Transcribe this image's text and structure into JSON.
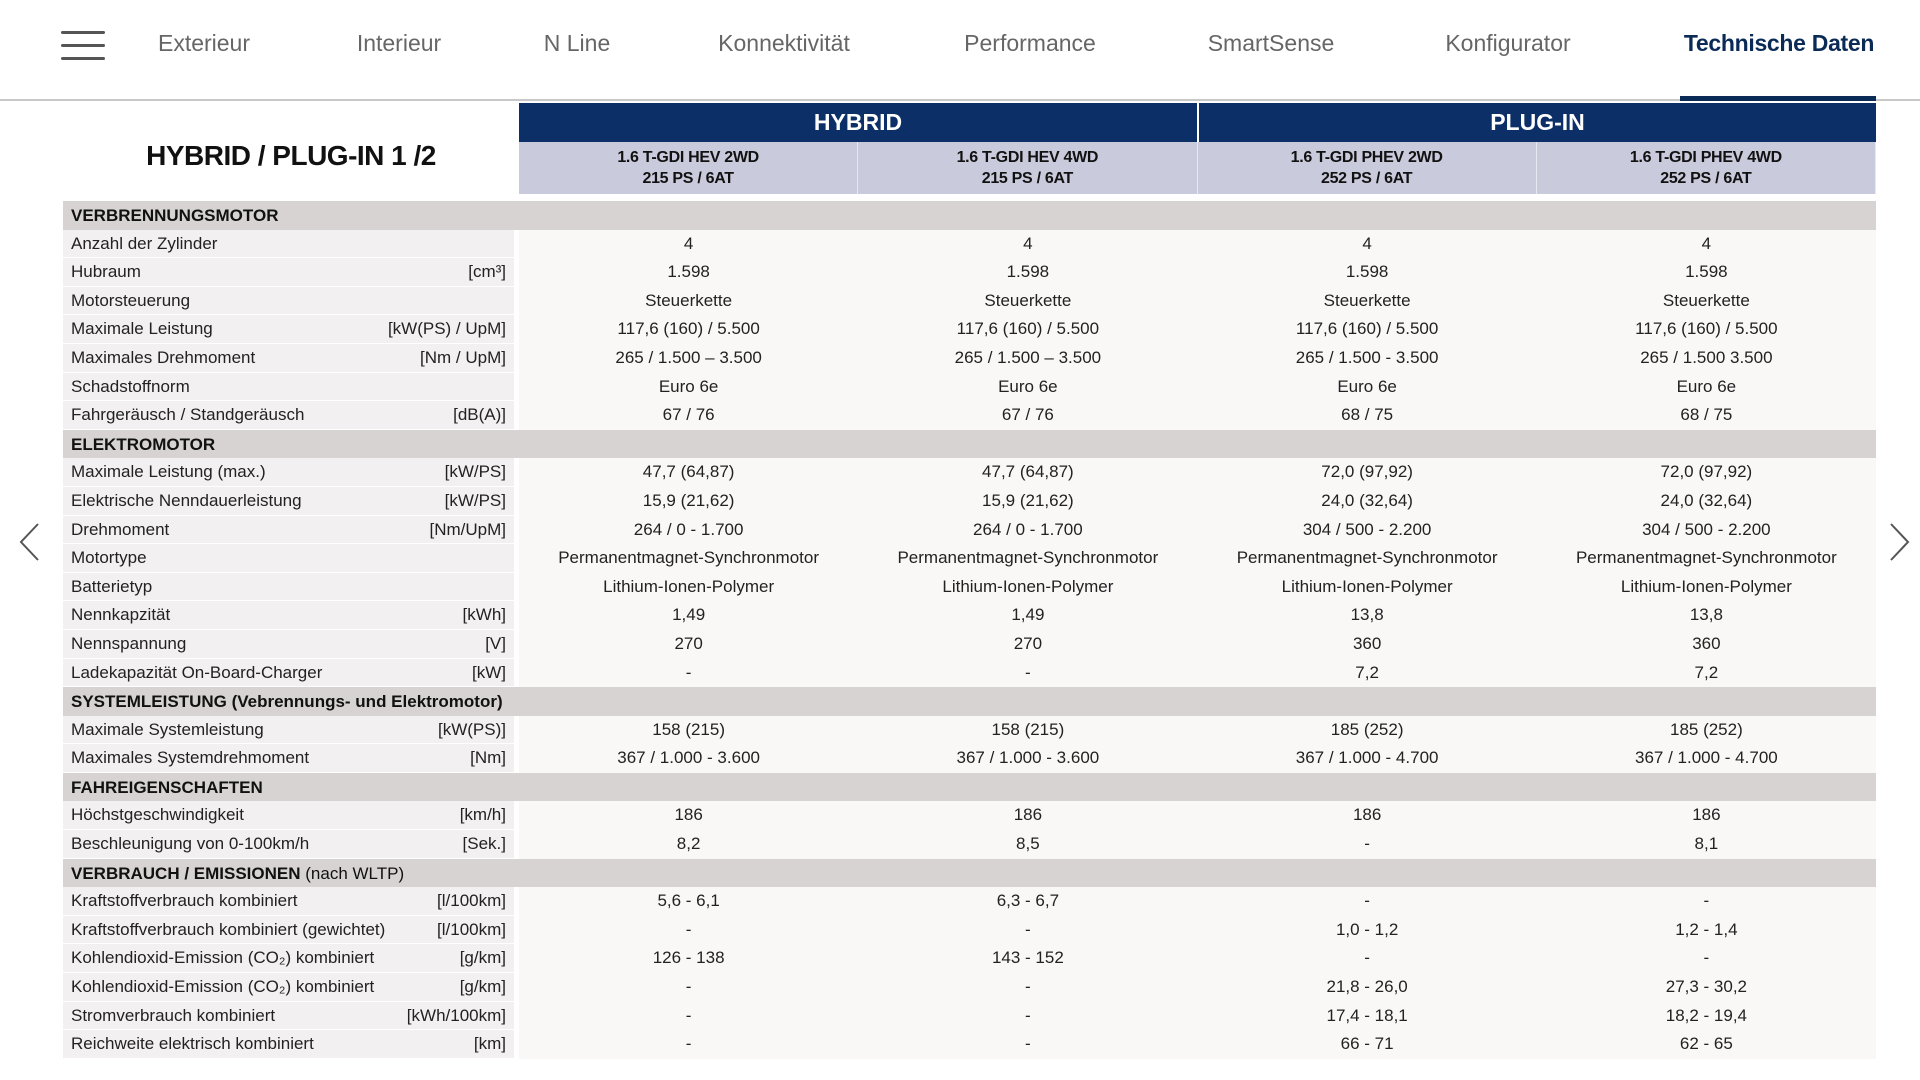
{
  "nav": {
    "items": [
      {
        "label": "Exterieur",
        "active": false
      },
      {
        "label": "Interieur",
        "active": false
      },
      {
        "label": "N Line",
        "active": false
      },
      {
        "label": "Konnektivität",
        "active": false
      },
      {
        "label": "Performance",
        "active": false
      },
      {
        "label": "SmartSense",
        "active": false
      },
      {
        "label": "Konfigurator",
        "active": false
      },
      {
        "label": "Technische Daten",
        "active": true
      }
    ],
    "accent": "#0b2b57"
  },
  "title": "HYBRID / PLUG-IN 1 /2",
  "groups": [
    {
      "label": "HYBRID"
    },
    {
      "label": "PLUG-IN"
    }
  ],
  "models": [
    {
      "name": "1.6 T-GDI HEV 2WD",
      "spec": "215 PS / 6AT"
    },
    {
      "name": "1.6 T-GDI HEV 4WD",
      "spec": "215 PS / 6AT"
    },
    {
      "name": "1.6 T-GDI PHEV 2WD",
      "spec": "252 PS / 6AT"
    },
    {
      "name": "1.6 T-GDI PHEV 4WD",
      "spec": "252 PS / 6AT"
    }
  ],
  "sections": [
    {
      "title": "VERBRENNUNGSMOTOR",
      "suffix": "",
      "rows": [
        {
          "label": "Anzahl der Zylinder",
          "unit": "",
          "values": [
            "4",
            "4",
            "4",
            "4"
          ]
        },
        {
          "label": "Hubraum",
          "unit": "[cm³]",
          "values": [
            "1.598",
            "1.598",
            "1.598",
            "1.598"
          ]
        },
        {
          "label": "Motorsteuerung",
          "unit": "",
          "values": [
            "Steuerkette",
            "Steuerkette",
            "Steuerkette",
            "Steuerkette"
          ]
        },
        {
          "label": "Maximale Leistung",
          "unit": "[kW(PS) / UpM]",
          "values": [
            "117,6 (160) / 5.500",
            "117,6 (160) / 5.500",
            "117,6 (160) / 5.500",
            "117,6 (160) / 5.500"
          ]
        },
        {
          "label": "Maximales Drehmoment",
          "unit": "[Nm / UpM]",
          "values": [
            "265 / 1.500 – 3.500",
            "265 / 1.500 – 3.500",
            "265 / 1.500 - 3.500",
            "265 / 1.500 3.500"
          ]
        },
        {
          "label": "Schadstoffnorm",
          "unit": "",
          "values": [
            "Euro 6e",
            "Euro 6e",
            "Euro 6e",
            "Euro 6e"
          ]
        },
        {
          "label": "Fahrgeräusch / Standgeräusch",
          "unit": "[dB(A)]",
          "values": [
            "67 / 76",
            "67 / 76",
            "68 / 75",
            "68 / 75"
          ]
        }
      ]
    },
    {
      "title": "ELEKTROMOTOR",
      "suffix": "",
      "rows": [
        {
          "label": "Maximale Leistung (max.)",
          "unit": "[kW/PS]",
          "values": [
            "47,7 (64,87)",
            "47,7 (64,87)",
            "72,0 (97,92)",
            "72,0 (97,92)"
          ]
        },
        {
          "label": "Elektrische Nenndauerleistung",
          "unit": "[kW/PS]",
          "values": [
            "15,9 (21,62)",
            "15,9 (21,62)",
            "24,0 (32,64)",
            "24,0 (32,64)"
          ]
        },
        {
          "label": "Drehmoment",
          "unit": "[Nm/UpM]",
          "values": [
            "264 / 0 - 1.700",
            "264 / 0 - 1.700",
            "304 / 500 - 2.200",
            "304 / 500 - 2.200"
          ]
        },
        {
          "label": "Motortype",
          "unit": "",
          "values": [
            "Permanentmagnet-Synchronmotor",
            "Permanentmagnet-Synchronmotor",
            "Permanentmagnet-Synchronmotor",
            "Permanentmagnet-Synchronmotor"
          ]
        },
        {
          "label": "Batterietyp",
          "unit": "",
          "values": [
            "Lithium-Ionen-Polymer",
            "Lithium-Ionen-Polymer",
            "Lithium-Ionen-Polymer",
            "Lithium-Ionen-Polymer"
          ]
        },
        {
          "label": "Nennkapzität",
          "unit": "[kWh]",
          "values": [
            "1,49",
            "1,49",
            "13,8",
            "13,8"
          ]
        },
        {
          "label": "Nennspannung",
          "unit": "[V]",
          "values": [
            "270",
            "270",
            "360",
            "360"
          ]
        },
        {
          "label": "Ladekapazität On-Board-Charger",
          "unit": "[kW]",
          "values": [
            "-",
            "-",
            "7,2",
            "7,2"
          ]
        }
      ]
    },
    {
      "title": "SYSTEMLEISTUNG (Vebrennungs- und Elektromotor)",
      "suffix": "",
      "rows": [
        {
          "label": "Maximale Systemleistung",
          "unit": "[kW(PS)]",
          "values": [
            "158 (215)",
            "158 (215)",
            "185 (252)",
            "185 (252)"
          ]
        },
        {
          "label": "Maximales Systemdrehmoment",
          "unit": "[Nm]",
          "values": [
            "367 / 1.000 - 3.600",
            "367 / 1.000 - 3.600",
            "367 / 1.000 - 4.700",
            "367 / 1.000 - 4.700"
          ]
        }
      ]
    },
    {
      "title": "FAHREIGENSCHAFTEN",
      "suffix": "",
      "rows": [
        {
          "label": "Höchstgeschwindigkeit",
          "unit": "[km/h]",
          "values": [
            "186",
            "186",
            "186",
            "186"
          ]
        },
        {
          "label": "Beschleunigung von 0-100km/h",
          "unit": "[Sek.]",
          "values": [
            "8,2",
            "8,5",
            "-",
            "8,1"
          ]
        }
      ]
    },
    {
      "title": "VERBRAUCH / EMISSIONEN",
      "suffix": " (nach WLTP)",
      "rows": [
        {
          "label": "Kraftstoffverbrauch kombiniert",
          "unit": "[l/100km]",
          "values": [
            "5,6 - 6,1",
            "6,3 - 6,7",
            "-",
            "-"
          ]
        },
        {
          "label": "Kraftstoffverbrauch kombiniert (gewichtet)",
          "unit": "[l/100km]",
          "values": [
            "-",
            "-",
            "1,0 - 1,2",
            "1,2 - 1,4"
          ]
        },
        {
          "label": "Kohlendioxid-Emission (CO₂) kombiniert",
          "unit": "[g/km]",
          "values": [
            "126 - 138",
            "143 - 152",
            "-",
            "-"
          ]
        },
        {
          "label": "Kohlendioxid-Emission (CO₂) kombiniert",
          "unit": "[g/km]",
          "values": [
            "-",
            "-",
            "21,8 - 26,0",
            "27,3 - 30,2"
          ]
        },
        {
          "label": "Stromverbrauch kombiniert",
          "unit": "[kWh/100km]",
          "values": [
            "-",
            "-",
            "17,4 - 18,1",
            "18,2 - 19,4"
          ]
        },
        {
          "label": "Reichweite elektrisch kombiniert",
          "unit": "[km]",
          "values": [
            "-",
            "-",
            "66 - 71",
            "62 - 65"
          ]
        }
      ]
    }
  ],
  "icons": {
    "menu": "hamburger-icon",
    "prev": "chevron-left-icon",
    "next": "chevron-right-icon"
  }
}
